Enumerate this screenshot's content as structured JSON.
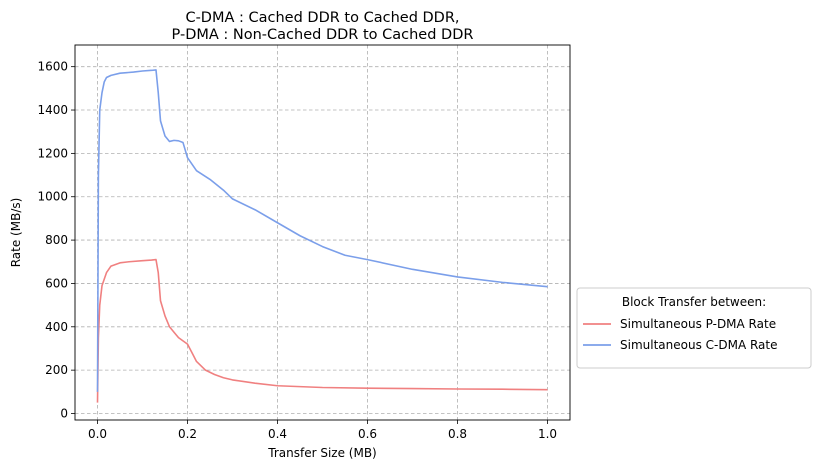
{
  "chart_data": {
    "type": "line",
    "title_line1": "C-DMA : Cached DDR to Cached DDR,",
    "title_line2": "P-DMA : Non-Cached DDR to Cached DDR",
    "xlabel": "Transfer Size (MB)",
    "ylabel": "Rate (MB/s)",
    "xlim": [
      -0.05,
      1.05
    ],
    "ylim": [
      -30,
      1700
    ],
    "xticks": [
      0.0,
      0.2,
      0.4,
      0.6,
      0.8,
      1.0
    ],
    "xtick_labels": [
      "0.0",
      "0.2",
      "0.4",
      "0.6",
      "0.8",
      "1.0"
    ],
    "yticks": [
      0,
      200,
      400,
      600,
      800,
      1000,
      1200,
      1400,
      1600
    ],
    "ytick_labels": [
      "0",
      "200",
      "400",
      "600",
      "800",
      "1000",
      "1200",
      "1400",
      "1600"
    ],
    "grid": true,
    "legend": {
      "title": "Block Transfer between:",
      "placement": "outside-right"
    },
    "series": [
      {
        "name": "Simultaneous P-DMA Rate",
        "color": "#f08080",
        "x": [
          0.0,
          0.002,
          0.005,
          0.01,
          0.02,
          0.03,
          0.05,
          0.07,
          0.1,
          0.12,
          0.13,
          0.135,
          0.14,
          0.15,
          0.16,
          0.17,
          0.18,
          0.19,
          0.2,
          0.21,
          0.22,
          0.24,
          0.26,
          0.28,
          0.3,
          0.35,
          0.4,
          0.5,
          0.6,
          0.7,
          0.8,
          0.9,
          1.0
        ],
        "y": [
          50,
          350,
          500,
          590,
          650,
          680,
          695,
          700,
          705,
          708,
          710,
          650,
          520,
          450,
          400,
          375,
          350,
          335,
          320,
          280,
          240,
          200,
          180,
          165,
          155,
          140,
          128,
          120,
          117,
          115,
          113,
          112,
          110
        ]
      },
      {
        "name": "Simultaneous C-DMA Rate",
        "color": "#7b9fea",
        "x": [
          0.0,
          0.002,
          0.005,
          0.01,
          0.015,
          0.02,
          0.03,
          0.05,
          0.08,
          0.1,
          0.12,
          0.13,
          0.135,
          0.14,
          0.15,
          0.16,
          0.17,
          0.18,
          0.19,
          0.2,
          0.21,
          0.22,
          0.25,
          0.28,
          0.3,
          0.35,
          0.4,
          0.45,
          0.5,
          0.55,
          0.6,
          0.7,
          0.8,
          0.9,
          1.0
        ],
        "y": [
          100,
          1100,
          1400,
          1480,
          1530,
          1550,
          1560,
          1570,
          1575,
          1580,
          1583,
          1585,
          1480,
          1350,
          1280,
          1255,
          1260,
          1258,
          1250,
          1180,
          1150,
          1120,
          1080,
          1030,
          990,
          940,
          880,
          820,
          770,
          730,
          710,
          665,
          630,
          605,
          585
        ]
      }
    ]
  }
}
